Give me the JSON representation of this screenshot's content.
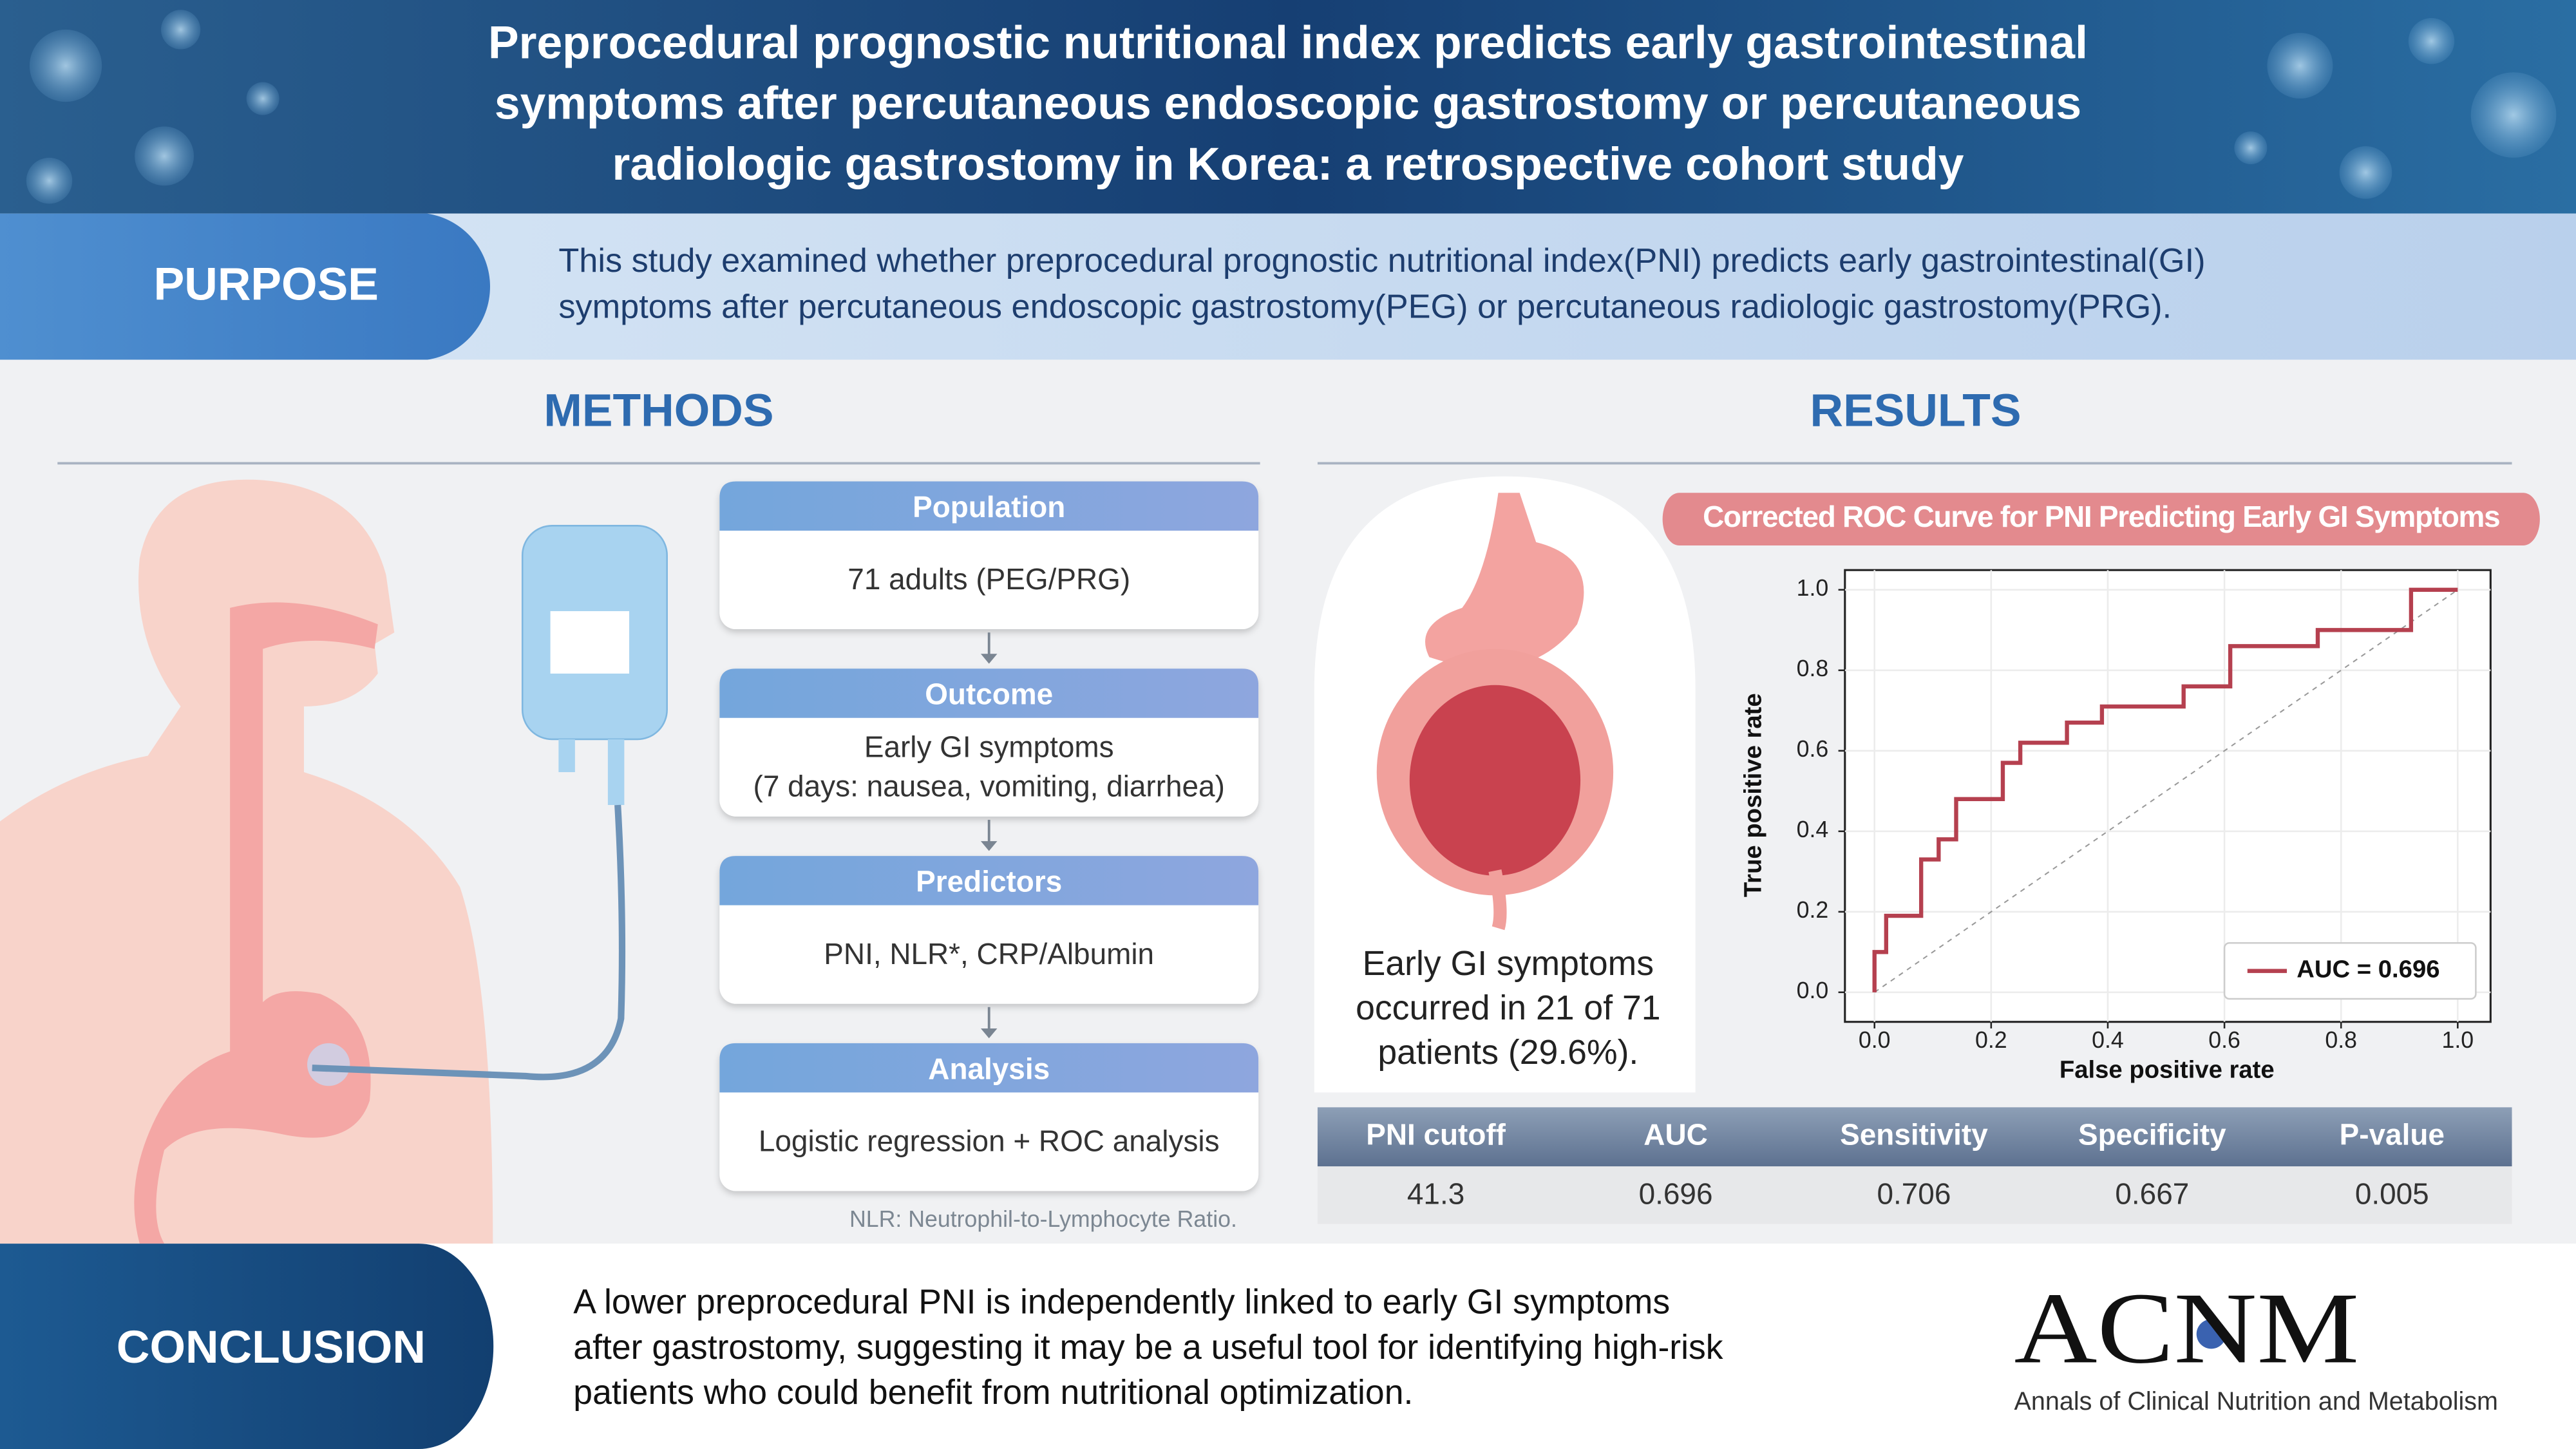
{
  "header": {
    "title": [
      "Preprocedural prognostic nutritional index predicts early gastrointestinal",
      "symptoms after percutaneous endoscopic gastrostomy or percutaneous",
      "radiologic gastrostomy in Korea: a retrospective cohort study"
    ]
  },
  "purpose": {
    "label": "PURPOSE",
    "text": [
      "This study examined whether preprocedural prognostic nutritional index(PNI) predicts early gastrointestinal(GI)",
      "symptoms after percutaneous endoscopic gastrostomy(PEG) or percutaneous radiologic gastrostomy(PRG)."
    ]
  },
  "methods": {
    "heading": "METHODS",
    "steps": [
      {
        "title": "Population",
        "lines": [
          "71 adults (PEG/PRG)"
        ]
      },
      {
        "title": "Outcome",
        "lines": [
          "Early GI symptoms",
          "(7 days: nausea, vomiting, diarrhea)"
        ]
      },
      {
        "title": "Predictors",
        "lines": [
          "PNI, NLR*, CRP/Albumin"
        ]
      },
      {
        "title": "Analysis",
        "lines": [
          "Logistic regression + ROC analysis"
        ]
      }
    ],
    "note": "NLR: Neutrophil-to-Lymphocyte Ratio."
  },
  "results": {
    "heading": "RESULTS",
    "summary": [
      "Early GI symptoms",
      "occurred in 21 of 71",
      "patients (29.6%)."
    ],
    "chart_data": {
      "type": "line",
      "title": "Corrected ROC Curve for PNI Predicting Early GI Symptoms",
      "x": [
        0,
        0,
        0.02,
        0.02,
        0.08,
        0.08,
        0.11,
        0.11,
        0.14,
        0.14,
        0.22,
        0.22,
        0.25,
        0.25,
        0.33,
        0.33,
        0.39,
        0.39,
        0.53,
        0.53,
        0.61,
        0.61,
        0.76,
        0.76,
        0.92,
        0.92,
        1
      ],
      "series": [
        {
          "name": "AUC = 0.696",
          "color": "#b5404f",
          "values": [
            0,
            0.1,
            0.1,
            0.19,
            0.19,
            0.33,
            0.33,
            0.38,
            0.38,
            0.48,
            0.48,
            0.57,
            0.57,
            0.62,
            0.62,
            0.67,
            0.67,
            0.71,
            0.71,
            0.76,
            0.76,
            0.86,
            0.86,
            0.9,
            0.9,
            1,
            1
          ]
        }
      ],
      "xlabel": "False positive rate",
      "ylabel": "True positive rate",
      "xlim": [
        0,
        1
      ],
      "ylim": [
        0,
        1
      ],
      "xticks": [
        {
          "value": 0,
          "label": "0.0"
        },
        0.2,
        0.4,
        0.6,
        0.8,
        {
          "value": 1,
          "label": "1.0"
        }
      ],
      "yticks": [
        {
          "value": 0,
          "label": "0.0"
        },
        0.2,
        0.4,
        0.6,
        0.8,
        {
          "value": 1,
          "label": "1.0"
        }
      ],
      "grid": true,
      "legend": "lower right"
    },
    "table": {
      "columns": [
        "PNI cutoff",
        "AUC",
        "Sensitivity",
        "Specificity",
        "P-value"
      ],
      "rows": [
        [
          "41.3",
          "0.696",
          "0.706",
          "0.667",
          "0.005"
        ]
      ]
    }
  },
  "conclusion": {
    "label": "CONCLUSION",
    "text": [
      "A lower preprocedural PNI is independently linked to early GI symptoms",
      "after gastrostomy, suggesting it may be a useful tool for identifying high-risk",
      "patients who could benefit from nutritional optimization."
    ]
  },
  "journal": {
    "logo": "ACNM",
    "name": "Annals of Clinical Nutrition and Metabolism"
  }
}
